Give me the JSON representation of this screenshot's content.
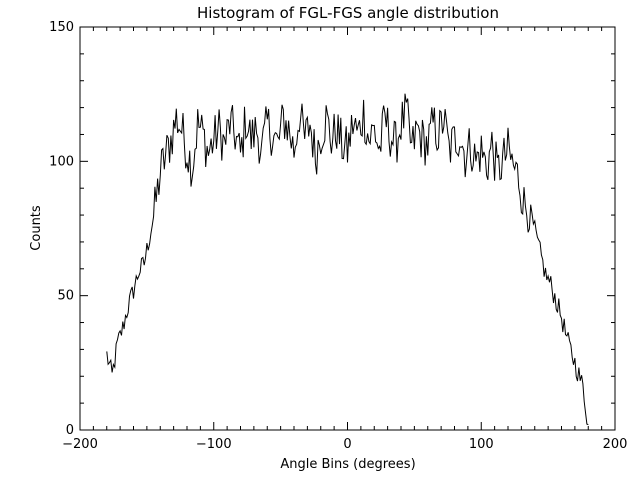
{
  "chart_data": {
    "type": "line",
    "title": "Histogram of FGL-FGS angle distribution",
    "xlabel": "Angle Bins (degrees)",
    "ylabel": "Counts",
    "xlim": [
      -200,
      200
    ],
    "ylim": [
      0,
      150
    ],
    "x_ticks": [
      -200,
      -100,
      0,
      100,
      200
    ],
    "x_tick_labels": [
      "−200",
      "−100",
      "0",
      "100",
      "200"
    ],
    "y_ticks": [
      0,
      50,
      100,
      150
    ],
    "y_tick_labels": [
      "0",
      "50",
      "100",
      "150"
    ],
    "grid": false,
    "line_color": "#000000",
    "series": [
      {
        "name": "Counts",
        "x": [
          -180,
          -176,
          -172,
          -168,
          -164,
          -160,
          -156,
          -152,
          -148,
          -144,
          -140,
          -136,
          -132,
          -128,
          -124,
          -120,
          -116,
          -112,
          -108,
          -104,
          -100,
          -96,
          -92,
          -88,
          -84,
          -80,
          -76,
          -72,
          -68,
          -64,
          -60,
          -56,
          -52,
          -48,
          -44,
          -40,
          -36,
          -32,
          -28,
          -24,
          -20,
          -16,
          -12,
          -8,
          -4,
          0,
          4,
          8,
          12,
          16,
          20,
          24,
          28,
          32,
          36,
          40,
          44,
          48,
          52,
          56,
          60,
          64,
          68,
          72,
          76,
          80,
          84,
          88,
          92,
          96,
          100,
          104,
          108,
          112,
          116,
          120,
          124,
          128,
          132,
          136,
          140,
          144,
          148,
          152,
          156,
          160,
          164,
          168,
          172,
          176,
          180
        ],
        "values": [
          28,
          20,
          32,
          38,
          46,
          52,
          59,
          62,
          72,
          82,
          96,
          102,
          108,
          116,
          112,
          104,
          98,
          114,
          110,
          103,
          108,
          112,
          106,
          114,
          110,
          102,
          116,
          108,
          112,
          104,
          114,
          110,
          106,
          116,
          112,
          104,
          118,
          108,
          114,
          102,
          110,
          116,
          108,
          112,
          106,
          104,
          114,
          110,
          118,
          108,
          112,
          104,
          116,
          110,
          106,
          114,
          118,
          104,
          112,
          108,
          106,
          114,
          110,
          116,
          104,
          108,
          110,
          102,
          106,
          100,
          104,
          98,
          106,
          96,
          100,
          104,
          98,
          94,
          84,
          82,
          74,
          66,
          58,
          54,
          48,
          42,
          34,
          28,
          22,
          16,
          2
        ]
      }
    ]
  }
}
